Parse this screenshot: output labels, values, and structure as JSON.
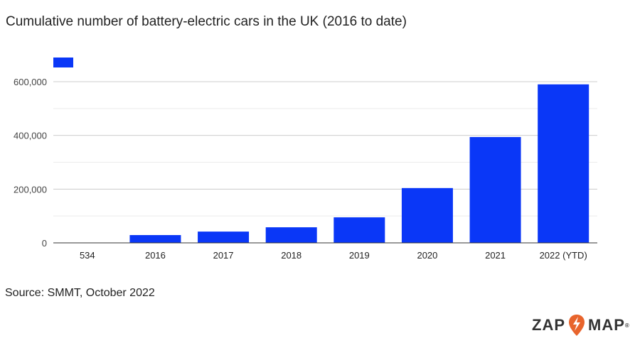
{
  "chart_data": {
    "type": "bar",
    "title": "Cumulative number of battery-electric cars in the UK (2016 to date)",
    "categories": [
      "534",
      "2016",
      "2017",
      "2018",
      "2019",
      "2020",
      "2021",
      "2022 (YTD)"
    ],
    "values": [
      0,
      29000,
      42000,
      58000,
      95000,
      204000,
      394000,
      590000
    ],
    "ylim": [
      0,
      600000
    ],
    "yticks": [
      "0",
      "200,000",
      "400,000",
      "600,000"
    ],
    "ytick_values": [
      0,
      200000,
      400000,
      600000
    ],
    "minor_grid": [
      100000,
      300000,
      500000
    ],
    "grid": true,
    "legend": "top-left",
    "color": "#0a37f7"
  },
  "source": "Source: SMMT, October 2022",
  "logo": {
    "left": "ZAP",
    "right": "MAP",
    "accent": "#e8642c"
  }
}
